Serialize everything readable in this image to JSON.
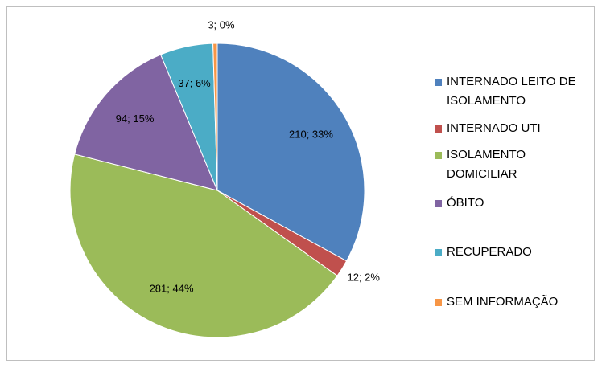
{
  "chart_data": {
    "type": "pie",
    "categories": [
      "INTERNADO LEITO DE ISOLAMENTO",
      "INTERNADO UTI",
      "ISOLAMENTO DOMICILIAR",
      "ÓBITO",
      "RECUPERADO",
      "SEM INFORMAÇÃO"
    ],
    "values": [
      210,
      12,
      281,
      94,
      37,
      3
    ],
    "value_labels": [
      "210; 33%",
      "12; 2%",
      "281; 44%",
      "94; 15%",
      "37; 6%",
      "3; 0%"
    ],
    "colors": [
      "#4f81bd",
      "#c0504d",
      "#9bbb59",
      "#8064a2",
      "#4bacc6",
      "#f79646"
    ],
    "legend": "right"
  }
}
